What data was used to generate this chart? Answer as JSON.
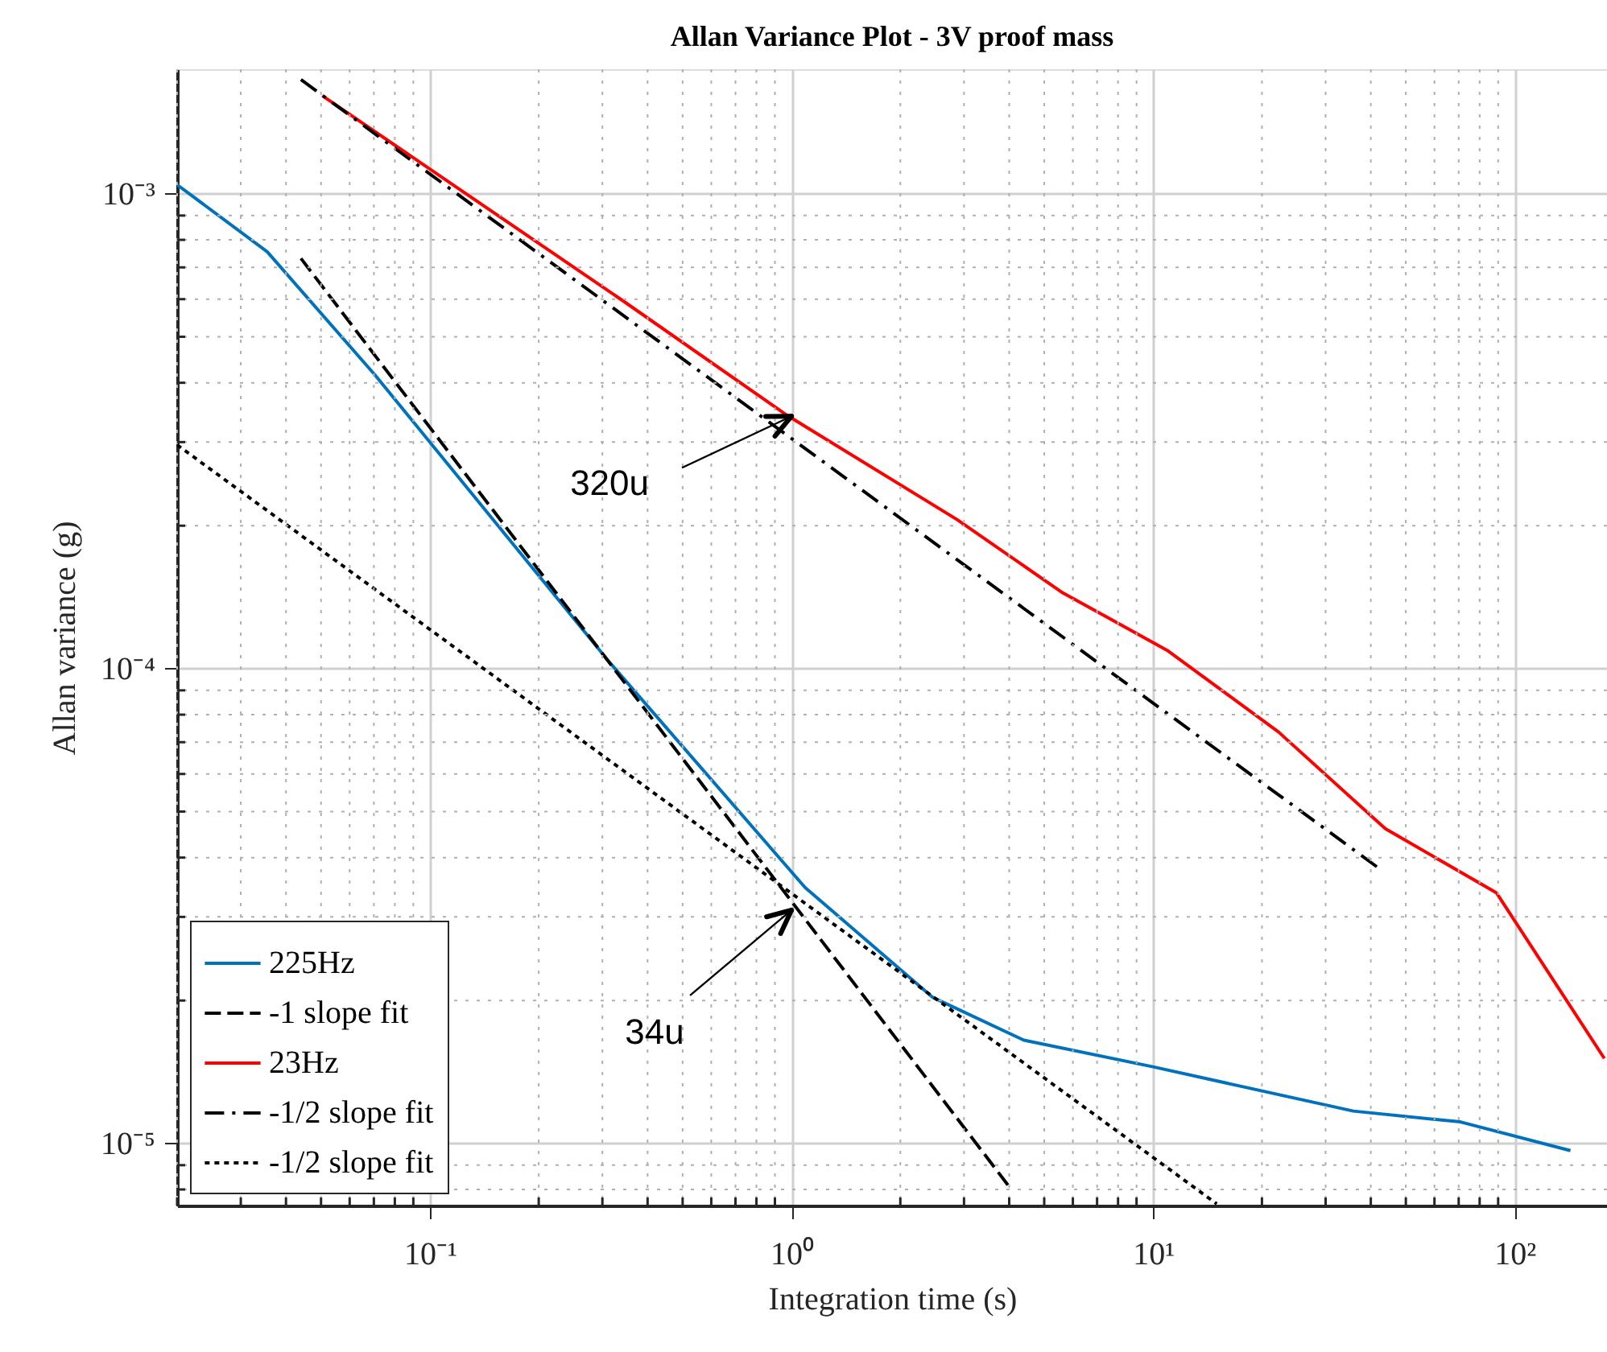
{
  "chart_data": {
    "type": "line",
    "title": "Allan Variance Plot - 3V proof mass",
    "xlabel": "Integration time (s)",
    "ylabel": "Allan variance (g)",
    "log": "xy",
    "grid": true,
    "legend": "bottom left",
    "xlim": [
      0.02,
      180
    ],
    "ylim": [
      7.4e-06,
      0.00183
    ],
    "xticks": [
      {
        "value": 0.02,
        "label": null
      },
      {
        "value": 0.03,
        "label": null
      },
      {
        "value": 0.04,
        "label": null
      },
      {
        "value": 0.05,
        "label": null
      },
      {
        "value": 0.06,
        "label": null
      },
      {
        "value": 0.07,
        "label": null
      },
      {
        "value": 0.08,
        "label": null
      },
      {
        "value": 0.09,
        "label": null
      },
      {
        "value": 0.1,
        "label": "10⁻¹"
      },
      {
        "value": 0.2,
        "label": null
      },
      {
        "value": 0.3,
        "label": null
      },
      {
        "value": 0.4,
        "label": null
      },
      {
        "value": 0.5,
        "label": null
      },
      {
        "value": 0.6,
        "label": null
      },
      {
        "value": 0.7,
        "label": null
      },
      {
        "value": 0.8,
        "label": null
      },
      {
        "value": 0.9,
        "label": null
      },
      {
        "value": 1,
        "label": "10⁰"
      },
      {
        "value": 2,
        "label": null
      },
      {
        "value": 3,
        "label": null
      },
      {
        "value": 4,
        "label": null
      },
      {
        "value": 5,
        "label": null
      },
      {
        "value": 6,
        "label": null
      },
      {
        "value": 7,
        "label": null
      },
      {
        "value": 8,
        "label": null
      },
      {
        "value": 9,
        "label": null
      },
      {
        "value": 10,
        "label": "10¹"
      },
      {
        "value": 20,
        "label": null
      },
      {
        "value": 30,
        "label": null
      },
      {
        "value": 40,
        "label": null
      },
      {
        "value": 50,
        "label": null
      },
      {
        "value": 60,
        "label": null
      },
      {
        "value": 70,
        "label": null
      },
      {
        "value": 80,
        "label": null
      },
      {
        "value": 90,
        "label": null
      },
      {
        "value": 100,
        "label": "10²"
      }
    ],
    "yticks": [
      {
        "value": 8e-06,
        "label": null
      },
      {
        "value": 9e-06,
        "label": null
      },
      {
        "value": 1e-05,
        "label": "10⁻⁵"
      },
      {
        "value": 2e-05,
        "label": null
      },
      {
        "value": 3e-05,
        "label": null
      },
      {
        "value": 4e-05,
        "label": null
      },
      {
        "value": 5e-05,
        "label": null
      },
      {
        "value": 6e-05,
        "label": null
      },
      {
        "value": 7e-05,
        "label": null
      },
      {
        "value": 8e-05,
        "label": null
      },
      {
        "value": 9e-05,
        "label": null
      },
      {
        "value": 0.0001,
        "label": "10⁻⁴"
      },
      {
        "value": 0.0002,
        "label": null
      },
      {
        "value": 0.0003,
        "label": null
      },
      {
        "value": 0.0004,
        "label": null
      },
      {
        "value": 0.0005,
        "label": null
      },
      {
        "value": 0.0006,
        "label": null
      },
      {
        "value": 0.0007,
        "label": null
      },
      {
        "value": 0.0008,
        "label": null
      },
      {
        "value": 0.0009,
        "label": null
      },
      {
        "value": 0.001,
        "label": "10⁻³"
      }
    ],
    "series": [
      {
        "name": "225Hz",
        "color": "#0072bd",
        "line_style": "solid",
        "x": [
          0.02,
          0.0355,
          0.0706,
          0.311,
          1.09,
          2.46,
          4.39,
          10,
          35.8,
          70.8,
          142.6
        ],
        "values": [
          0.001045,
          0.000755,
          0.000415,
          0.000104,
          3.46e-05,
          2.03e-05,
          1.65e-05,
          1.45e-05,
          1.17e-05,
          1.11e-05,
          9.66e-06
        ]
      },
      {
        "name": "-1 slope fit",
        "color": "#000000",
        "line_style": "dashed",
        "x": [
          0.044,
          3.97
        ],
        "values": [
          0.000731,
          8.17e-06
        ]
      },
      {
        "name": "23Hz",
        "color": "#ff0000",
        "line_style": "solid",
        "x": [
          0.0504,
          0.34,
          0.97,
          2.87,
          5.58,
          11.0,
          22.2,
          43.9,
          89.1,
          177
        ],
        "values": [
          0.00161,
          0.000597,
          0.000342,
          0.000206,
          0.000145,
          0.000109,
          7.36e-05,
          4.6e-05,
          3.37e-05,
          1.51e-05
        ]
      },
      {
        "name": "-1/2 slope fit",
        "color": "#000000",
        "line_style": "dashdot",
        "x": [
          0.044,
          43.3
        ],
        "values": [
          0.00174,
          3.74e-05
        ]
      },
      {
        "name": "-1/2 slope fit",
        "color": "#000000",
        "line_style": "dotted",
        "x": [
          0.02,
          15.0
        ],
        "values": [
          0.000296,
          7.46e-06
        ]
      }
    ],
    "annotations": [
      {
        "text": "320u",
        "x": 1,
        "y": 0.00034
      },
      {
        "text": "34u",
        "x": 1,
        "y": 3.1e-05
      }
    ]
  }
}
